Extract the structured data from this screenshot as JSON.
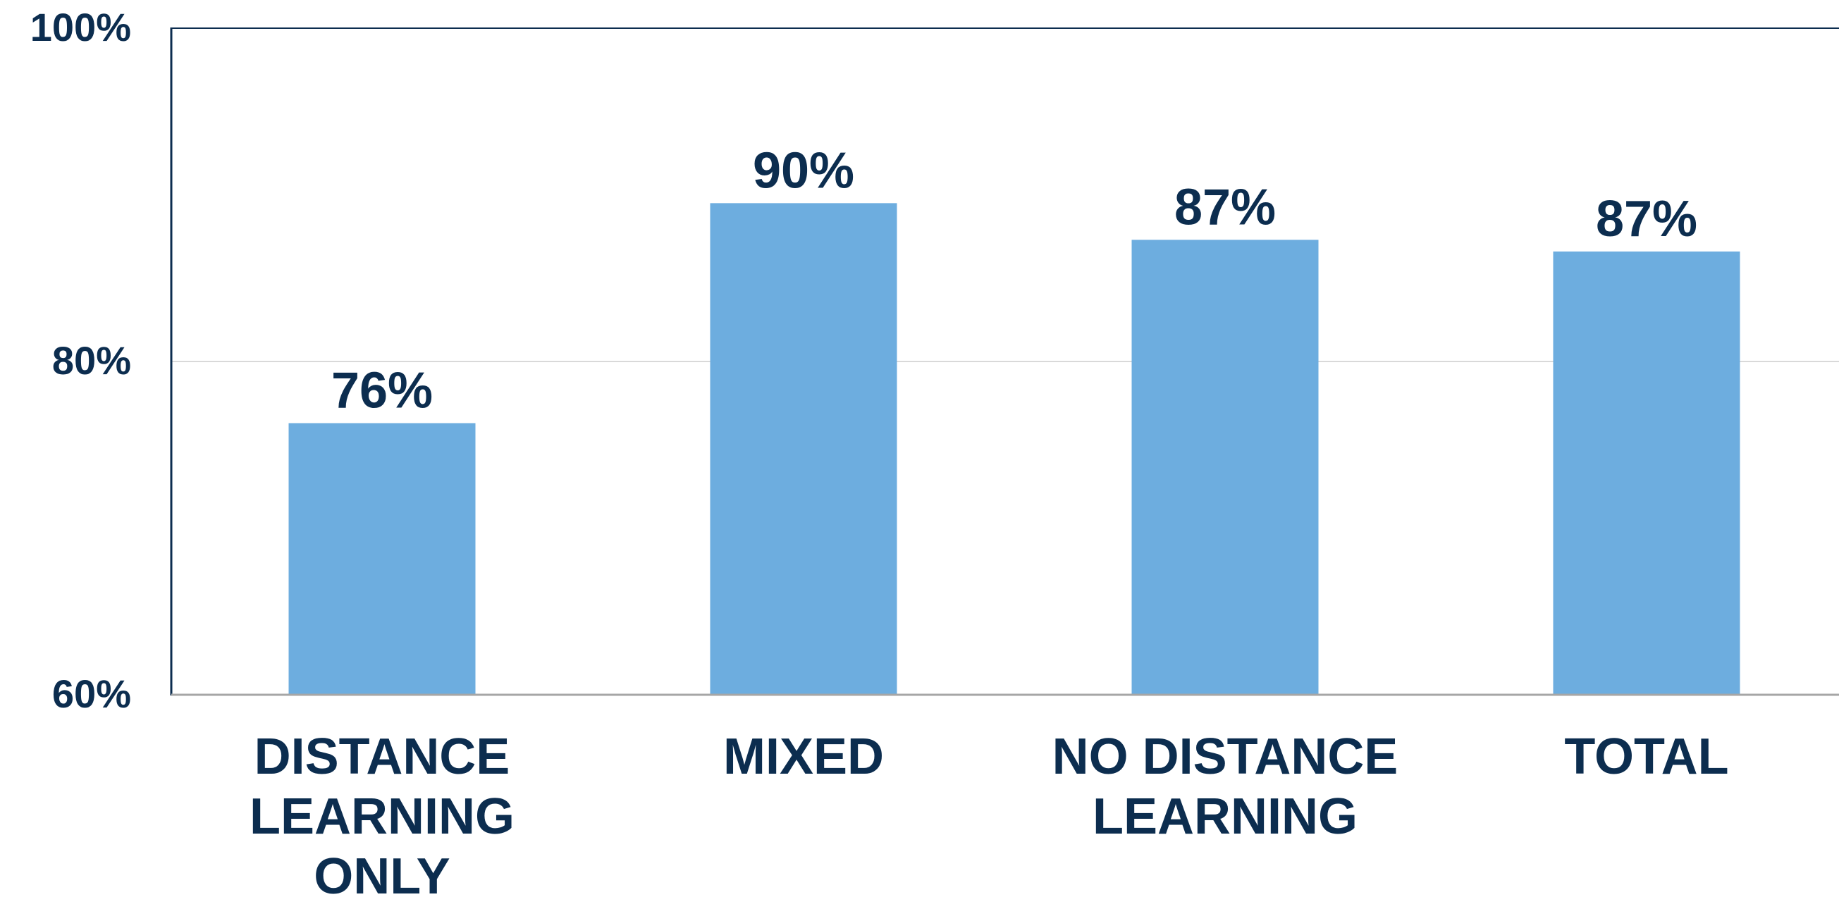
{
  "colors": {
    "bar": "#6DADDF",
    "text": "#0C2D4F",
    "axis": "#0C2D4F",
    "gridline": "#D9D9D9"
  },
  "chart_data": {
    "type": "bar",
    "title": "",
    "xlabel": "",
    "ylabel": "",
    "categories": [
      [
        "DISTANCE",
        "LEARNING",
        "ONLY"
      ],
      [
        "MIXED"
      ],
      [
        "NO DISTANCE",
        "LEARNING"
      ],
      [
        "TOTAL"
      ]
    ],
    "values": [
      76.3,
      89.5,
      87.3,
      86.6
    ],
    "data_labels": [
      "76%",
      "90%",
      "87%",
      "87%"
    ],
    "ylim": [
      60,
      100
    ],
    "yticks": [
      60,
      80,
      100
    ],
    "ytick_labels": [
      "60%",
      "80%",
      "100%"
    ],
    "grid": true,
    "legend": "none"
  }
}
